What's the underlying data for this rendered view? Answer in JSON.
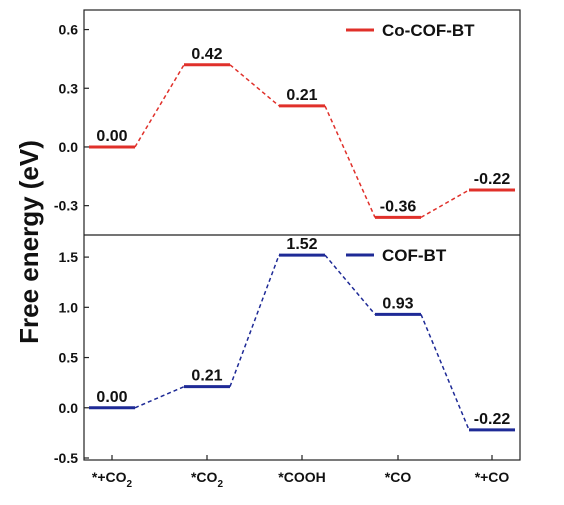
{
  "chart_data": {
    "type": "line",
    "ylabel": "Free energy (eV)",
    "categories": [
      "*+CO|2",
      "*CO|2",
      "*COOH",
      "*CO",
      "*+CO"
    ],
    "panels": [
      {
        "series_name": "Co-COF-BT",
        "color": "#e0302a",
        "values": [
          0.0,
          0.42,
          0.21,
          -0.36,
          -0.22
        ],
        "value_labels": [
          "0.00",
          "0.42",
          "0.21",
          "-0.36",
          "-0.22"
        ],
        "ylim": [
          -0.45,
          0.7
        ],
        "yticks": [
          -0.3,
          0.0,
          0.3,
          0.6
        ],
        "ytick_labels": [
          "-0.3",
          "0.0",
          "0.3",
          "0.6"
        ],
        "legend_position": "top-right"
      },
      {
        "series_name": "COF-BT",
        "color": "#1e2a96",
        "values": [
          0.0,
          0.21,
          1.52,
          0.93,
          -0.22
        ],
        "value_labels": [
          "0.00",
          "0.21",
          "1.52",
          "0.93",
          "-0.22"
        ],
        "ylim": [
          -0.52,
          1.72
        ],
        "yticks": [
          -0.5,
          0.0,
          0.5,
          1.0,
          1.5
        ],
        "ytick_labels": [
          "-0.5",
          "0.0",
          "0.5",
          "1.0",
          "1.5"
        ],
        "legend_position": "top-right"
      }
    ],
    "grid": false
  }
}
